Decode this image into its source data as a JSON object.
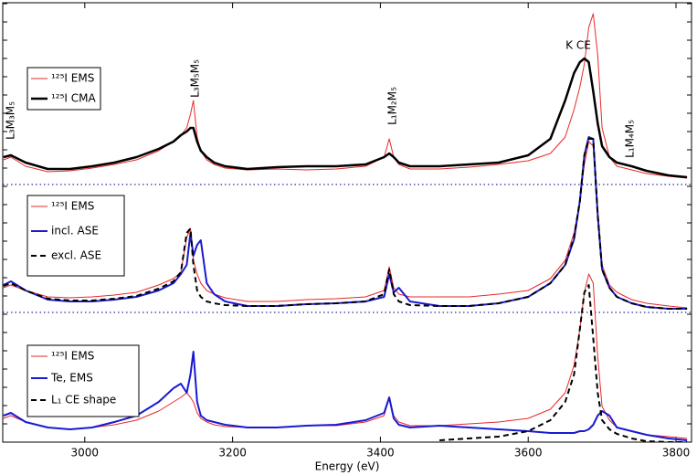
{
  "chart_data": {
    "type": "line",
    "xlabel": "Energy (eV)",
    "xlim": [
      2889,
      3821
    ],
    "xticks": [
      3000,
      3200,
      3400,
      3600,
      3800
    ],
    "ylim": [
      0,
      481
    ],
    "yticks": [
      0,
      20,
      40,
      60,
      80,
      100,
      120,
      140,
      160,
      180,
      200,
      220,
      240,
      260,
      280,
      300,
      320,
      340,
      360,
      380,
      400,
      420,
      440,
      460,
      480
    ],
    "reference_lines": {
      "values": [
        282,
        142
      ],
      "color": "#2a2aa0",
      "style": "dotted"
    },
    "x": [
      2890,
      2900,
      2920,
      2950,
      2980,
      3010,
      3040,
      3070,
      3100,
      3120,
      3130,
      3138,
      3143,
      3147,
      3152,
      3157,
      3165,
      3175,
      3190,
      3220,
      3260,
      3300,
      3340,
      3380,
      3405,
      3412,
      3418,
      3425,
      3440,
      3480,
      3520,
      3560,
      3600,
      3630,
      3650,
      3662,
      3670,
      3676,
      3682,
      3688,
      3694,
      3700,
      3710,
      3720,
      3740,
      3760,
      3790,
      3815
    ],
    "groups": [
      {
        "series": [
          {
            "name": "¹²⁵I EMS",
            "color": "#e8282a",
            "width": 1,
            "style": "solid",
            "values": [
              309,
              312,
              302,
              296,
              297,
              300,
              304,
              309,
              319,
              329,
              336,
              344,
              359,
              374,
              334,
              319,
              309,
              304,
              300,
              298,
              299,
              298,
              299,
              302,
              312,
              332,
              312,
              304,
              299,
              299,
              301,
              304,
              308,
              316,
              334,
              364,
              389,
              414,
              454,
              469,
              424,
              344,
              312,
              302,
              298,
              294,
              291,
              289
            ]
          },
          {
            "name": "¹²⁵I CMA",
            "color": "#000000",
            "width": 2.5,
            "style": "solid",
            "values": [
              312,
              314,
              306,
              299,
              299,
              302,
              306,
              312,
              321,
              329,
              336,
              340,
              344,
              344,
              329,
              319,
              312,
              306,
              302,
              299,
              301,
              302,
              302,
              304,
              312,
              316,
              312,
              306,
              302,
              302,
              304,
              306,
              314,
              332,
              374,
              404,
              416,
              420,
              416,
              384,
              349,
              324,
              312,
              306,
              302,
              297,
              292,
              290
            ]
          }
        ]
      },
      {
        "series": [
          {
            "name": "¹²⁵I EMS",
            "color": "#e8282a",
            "width": 1,
            "style": "solid",
            "values": [
              169,
              172,
              166,
              159,
              158,
              159,
              161,
              164,
              172,
              179,
              186,
              224,
              234,
              199,
              184,
              174,
              166,
              162,
              158,
              154,
              154,
              156,
              157,
              159,
              166,
              192,
              169,
              162,
              159,
              159,
              159,
              162,
              166,
              179,
              199,
              229,
              264,
              304,
              329,
              324,
              254,
              194,
              172,
              164,
              156,
              152,
              149,
              147
            ]
          },
          {
            "name": "incl. ASE",
            "color": "#1a1ad0",
            "width": 2,
            "style": "solid",
            "values": [
              172,
              176,
              166,
              156,
              154,
              154,
              156,
              159,
              166,
              174,
              184,
              194,
              229,
              204,
              216,
              221,
              174,
              162,
              154,
              149,
              149,
              151,
              152,
              154,
              159,
              184,
              164,
              169,
              154,
              149,
              149,
              152,
              159,
              174,
              194,
              222,
              264,
              314,
              334,
              332,
              249,
              189,
              169,
              159,
              152,
              148,
              146,
              146
            ]
          },
          {
            "name": "excl.  ASE",
            "color": "#000000",
            "width": 2,
            "style": "dashed",
            "values": [
              171,
              174,
              166,
              157,
              155,
              155,
              157,
              160,
              168,
              176,
              186,
              229,
              234,
              194,
              166,
              159,
              154,
              152,
              150,
              149,
              149,
              151,
              152,
              154,
              162,
              189,
              162,
              154,
              150,
              149,
              149,
              152,
              159,
              174,
              194,
              224,
              264,
              314,
              332,
              332,
              249,
              189,
              169,
              159,
              152,
              148,
              146,
              146
            ]
          }
        ]
      },
      {
        "series": [
          {
            "name": "¹²⁵I EMS",
            "color": "#e8282a",
            "width": 1,
            "style": "solid",
            "values": [
              26,
              29,
              22,
              16,
              14,
              16,
              19,
              24,
              34,
              44,
              49,
              54,
              49,
              44,
              32,
              26,
              22,
              19,
              17,
              16,
              16,
              18,
              18,
              22,
              29,
              49,
              29,
              22,
              18,
              18,
              20,
              22,
              26,
              36,
              54,
              84,
              124,
              164,
              184,
              174,
              94,
              39,
              24,
              16,
              12,
              8,
              6,
              4
            ]
          },
          {
            "name": "Te, EMS",
            "color": "#1a1ad0",
            "width": 2,
            "style": "solid",
            "values": [
              29,
              32,
              22,
              16,
              14,
              16,
              22,
              29,
              44,
              59,
              64,
              54,
              74,
              99,
              44,
              29,
              24,
              22,
              19,
              16,
              16,
              18,
              19,
              24,
              32,
              49,
              26,
              19,
              16,
              18,
              16,
              14,
              12,
              10,
              10,
              10,
              12,
              12,
              14,
              19,
              29,
              34,
              29,
              16,
              12,
              8,
              4,
              2
            ]
          },
          {
            "name": "L₁ CE shape",
            "color": "#000000",
            "width": 2,
            "style": "dashed",
            "values": [
              null,
              null,
              null,
              null,
              null,
              null,
              null,
              null,
              null,
              null,
              null,
              null,
              null,
              null,
              null,
              null,
              null,
              null,
              null,
              null,
              null,
              null,
              null,
              null,
              null,
              null,
              null,
              null,
              null,
              2,
              4,
              6,
              12,
              24,
              44,
              74,
              124,
              164,
              172,
              114,
              54,
              24,
              14,
              9,
              4,
              1,
              0,
              0
            ]
          }
        ]
      }
    ],
    "annotations": [
      "L₃M₃M₅",
      "L₃M₅M₅",
      "L₁M₂M₅",
      "K CE",
      "L₁M₄M₅"
    ]
  }
}
